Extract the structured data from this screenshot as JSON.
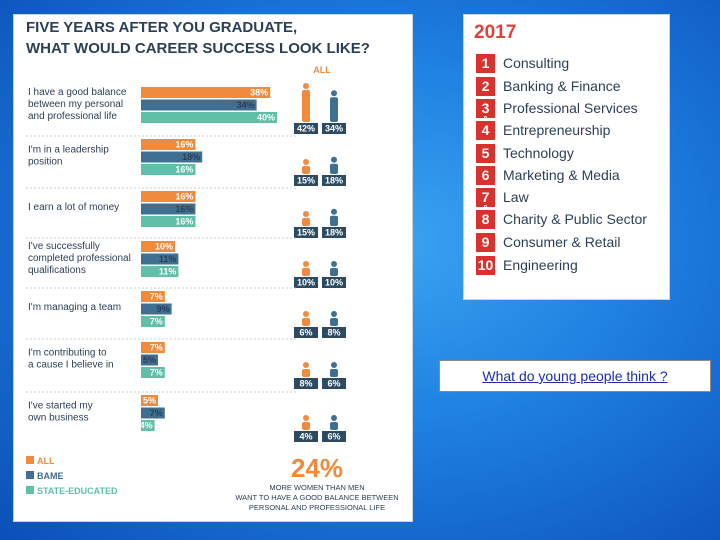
{
  "chart_data": {
    "type": "bar",
    "title": "FIVE YEARS AFTER YOU GRADUATE, WHAT WOULD CAREER SUCCESS LOOK LIKE?",
    "gender_header": "ALL",
    "categories": [
      "I have a good balance between my personal and professional life",
      "I'm in a leadership position",
      "I earn a lot of money",
      "I've successfully completed professional qualifications",
      "I'm managing a team",
      "I'm contributing to a cause I believe in",
      "I've started my own business"
    ],
    "category_lines": [
      [
        "I have a good balance",
        "between my personal",
        "and professional life"
      ],
      [
        "I'm in a leadership",
        "position"
      ],
      [
        "I earn a lot of money"
      ],
      [
        "I've successfully",
        "completed professional",
        "qualifications"
      ],
      [
        "I'm managing a team"
      ],
      [
        "I'm contributing to",
        "a cause I believe in"
      ],
      [
        "I've started my",
        "own business"
      ]
    ],
    "series": [
      {
        "name": "ALL",
        "color": "#f08a3c",
        "values": [
          38,
          16,
          16,
          10,
          7,
          7,
          5
        ]
      },
      {
        "name": "BAME",
        "color": "#3f6f93",
        "values": [
          34,
          18,
          16,
          11,
          9,
          5,
          7
        ]
      },
      {
        "name": "STATE-EDUCATED",
        "color": "#5fbfa8",
        "values": [
          40,
          16,
          16,
          11,
          7,
          7,
          4
        ]
      }
    ],
    "gender": {
      "women": [
        42,
        15,
        15,
        10,
        6,
        8,
        4
      ],
      "men": [
        34,
        18,
        18,
        10,
        8,
        6,
        6
      ]
    },
    "footer_big": "24%",
    "footer_text": [
      "MORE WOMEN THAN MEN",
      "WANT TO HAVE A GOOD BALANCE BETWEEN",
      "PERSONAL AND PROFESSIONAL LIFE"
    ],
    "xlim": [
      0,
      40
    ]
  },
  "ranking": {
    "year": "2017",
    "items": [
      {
        "num": "1",
        "label": "Consulting"
      },
      {
        "num": "2",
        "label": "Banking & Finance"
      },
      {
        "num": "3",
        "label": "Professional Services"
      },
      {
        "num": "4",
        "label": "Entrepreneurship"
      },
      {
        "num": "5",
        "label": "Technology"
      },
      {
        "num": "6",
        "label": "Marketing & Media"
      },
      {
        "num": "7",
        "label": "Law"
      },
      {
        "num": "8",
        "label": "Charity & Public Sector"
      },
      {
        "num": "9",
        "label": "Consumer & Retail"
      },
      {
        "num": "10",
        "label": "Engineering"
      }
    ],
    "pair_glyph": "&"
  },
  "question": "What do young people think ?"
}
